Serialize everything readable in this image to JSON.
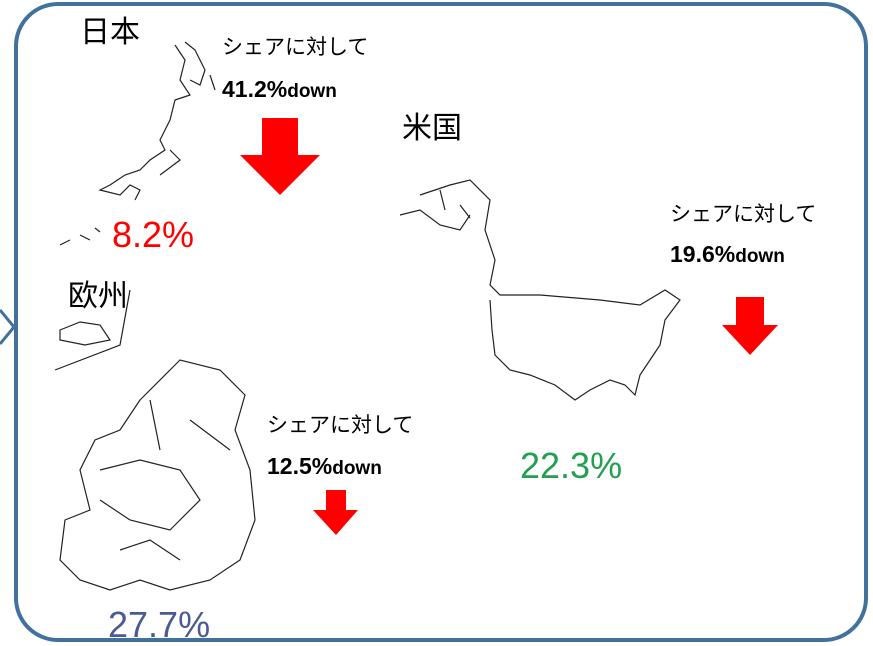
{
  "regions": [
    {
      "name": "日本",
      "note": "シェアに対して",
      "decline": "41.2%",
      "suffix": "down",
      "share": "8.2%"
    },
    {
      "name": "米国",
      "note": "シェアに対して",
      "decline": "19.6%",
      "suffix": "down",
      "share": "22.3%"
    },
    {
      "name": "欧州",
      "note": "シェアに対して",
      "decline": "12.5%",
      "suffix": "down",
      "share": "27.7%"
    }
  ]
}
